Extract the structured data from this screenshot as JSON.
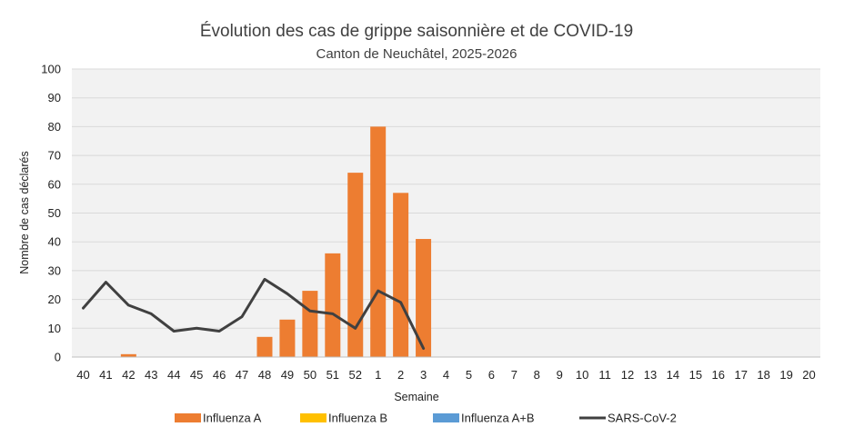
{
  "chart_data": {
    "type": "bar",
    "title": "Évolution des cas de grippe saisonnière et de COVID-19",
    "subtitle": "Canton de Neuchâtel, 2025-2026",
    "xlabel": "Semaine",
    "ylabel": "Nombre de cas déclarés",
    "ylim": [
      0,
      100
    ],
    "yticks": [
      0,
      10,
      20,
      30,
      40,
      50,
      60,
      70,
      80,
      90,
      100
    ],
    "grid": true,
    "legend_position": "bottom",
    "categories": [
      "40",
      "41",
      "42",
      "43",
      "44",
      "45",
      "46",
      "47",
      "48",
      "49",
      "50",
      "51",
      "52",
      "1",
      "2",
      "3",
      "4",
      "5",
      "6",
      "7",
      "8",
      "9",
      "10",
      "11",
      "12",
      "13",
      "14",
      "15",
      "16",
      "17",
      "18",
      "19",
      "20"
    ],
    "series": [
      {
        "name": "Influenza A",
        "kind": "bar",
        "color": "#ED7D31",
        "values": [
          0,
          0,
          1,
          0,
          0,
          0,
          0,
          0,
          7,
          13,
          23,
          36,
          64,
          80,
          57,
          41,
          null,
          null,
          null,
          null,
          null,
          null,
          null,
          null,
          null,
          null,
          null,
          null,
          null,
          null,
          null,
          null,
          null
        ]
      },
      {
        "name": "Influenza B",
        "kind": "bar",
        "color": "#FFC000",
        "values": [
          0,
          0,
          0,
          0,
          0,
          0,
          0,
          0,
          0,
          0,
          0,
          0,
          0,
          0,
          0,
          0,
          null,
          null,
          null,
          null,
          null,
          null,
          null,
          null,
          null,
          null,
          null,
          null,
          null,
          null,
          null,
          null,
          null
        ]
      },
      {
        "name": "Influenza A+B",
        "kind": "bar",
        "color": "#5B9BD5",
        "values": [
          0,
          0,
          0,
          0,
          0,
          0,
          0,
          0,
          0,
          0,
          0,
          0,
          0,
          0,
          0,
          0,
          null,
          null,
          null,
          null,
          null,
          null,
          null,
          null,
          null,
          null,
          null,
          null,
          null,
          null,
          null,
          null,
          null
        ]
      },
      {
        "name": "SARS-CoV-2",
        "kind": "line",
        "color": "#404040",
        "values": [
          17,
          26,
          18,
          15,
          9,
          10,
          9,
          14,
          27,
          22,
          16,
          15,
          10,
          23,
          19,
          3,
          null,
          null,
          null,
          null,
          null,
          null,
          null,
          null,
          null,
          null,
          null,
          null,
          null,
          null,
          null,
          null,
          null
        ]
      }
    ]
  },
  "colors": {
    "plot_background": "#F2F2F2",
    "gridline": "#D9D9D9"
  }
}
